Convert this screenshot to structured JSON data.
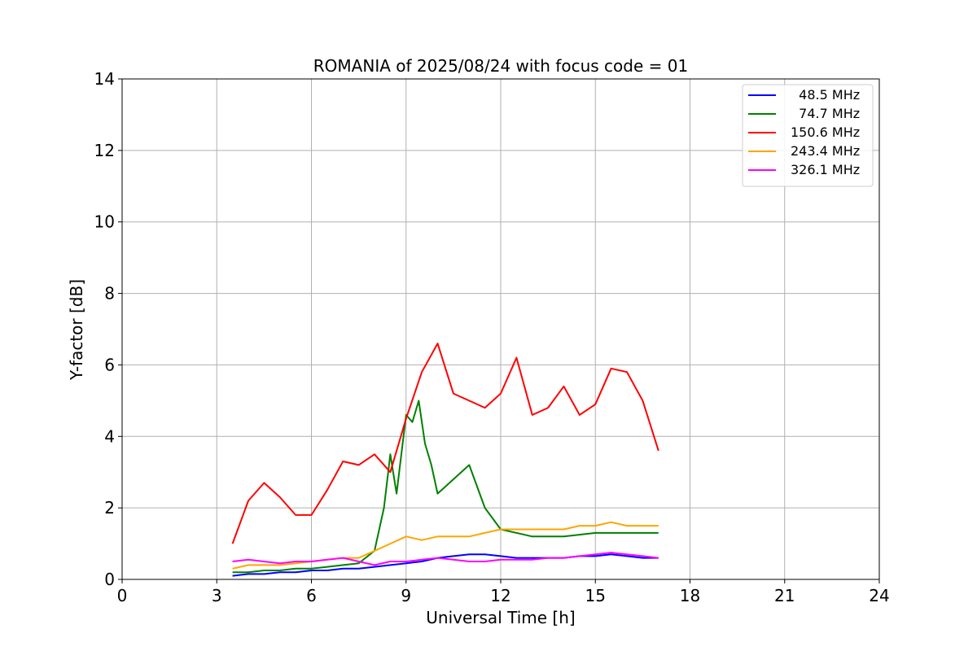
{
  "chart_data": {
    "type": "line",
    "title": "ROMANIA of 2025/08/24 with focus code = 01",
    "xlabel": "Universal Time [h]",
    "ylabel": "Y-factor [dB]",
    "xlim": [
      0,
      24
    ],
    "ylim": [
      0,
      14
    ],
    "xticks": [
      0,
      3,
      6,
      9,
      12,
      15,
      18,
      21,
      24
    ],
    "yticks": [
      0,
      2,
      4,
      6,
      8,
      10,
      12,
      14
    ],
    "grid": true,
    "legend_position": "top-right",
    "series": [
      {
        "name": "  48.5 MHz",
        "color": "#0000ff",
        "x": [
          3.5,
          4.0,
          4.5,
          5.0,
          5.5,
          6.0,
          6.5,
          7.0,
          7.5,
          8.0,
          8.5,
          9.0,
          9.5,
          10.0,
          10.5,
          11.0,
          11.5,
          12.0,
          12.5,
          13.0,
          13.5,
          14.0,
          14.5,
          15.0,
          15.5,
          16.0,
          16.5,
          17.0
        ],
        "y": [
          0.1,
          0.15,
          0.15,
          0.2,
          0.2,
          0.25,
          0.25,
          0.3,
          0.3,
          0.35,
          0.4,
          0.45,
          0.5,
          0.6,
          0.65,
          0.7,
          0.7,
          0.65,
          0.6,
          0.6,
          0.6,
          0.6,
          0.65,
          0.65,
          0.7,
          0.65,
          0.6,
          0.6
        ]
      },
      {
        "name": "  74.7 MHz",
        "color": "#008000",
        "x": [
          3.5,
          4.0,
          4.5,
          5.0,
          5.5,
          6.0,
          6.5,
          7.0,
          7.5,
          8.0,
          8.3,
          8.5,
          8.7,
          9.0,
          9.2,
          9.4,
          9.6,
          9.8,
          10.0,
          10.5,
          11.0,
          11.5,
          12.0,
          13.0,
          14.0,
          15.0,
          16.0,
          17.0
        ],
        "y": [
          0.2,
          0.2,
          0.25,
          0.25,
          0.3,
          0.3,
          0.35,
          0.4,
          0.45,
          0.8,
          2.0,
          3.5,
          2.4,
          4.6,
          4.4,
          5.0,
          3.8,
          3.2,
          2.4,
          2.8,
          3.2,
          2.0,
          1.4,
          1.2,
          1.2,
          1.3,
          1.3,
          1.3
        ]
      },
      {
        "name": "150.6 MHz",
        "color": "#ff0000",
        "x": [
          3.5,
          4.0,
          4.5,
          5.0,
          5.5,
          6.0,
          6.5,
          7.0,
          7.5,
          8.0,
          8.5,
          9.0,
          9.5,
          10.0,
          10.5,
          11.0,
          11.5,
          12.0,
          12.5,
          13.0,
          13.5,
          14.0,
          14.5,
          15.0,
          15.5,
          16.0,
          16.5,
          17.0
        ],
        "y": [
          1.0,
          2.2,
          2.7,
          2.3,
          1.8,
          1.8,
          2.5,
          3.3,
          3.2,
          3.5,
          3.0,
          4.5,
          5.8,
          6.6,
          5.2,
          5.0,
          4.8,
          5.2,
          6.2,
          4.6,
          4.8,
          5.4,
          4.6,
          4.9,
          5.9,
          5.8,
          5.0,
          3.6
        ]
      },
      {
        "name": "243.4 MHz",
        "color": "#ffa500",
        "x": [
          3.5,
          4.0,
          4.5,
          5.0,
          5.5,
          6.0,
          6.5,
          7.0,
          7.5,
          8.0,
          8.5,
          9.0,
          9.5,
          10.0,
          10.5,
          11.0,
          11.5,
          12.0,
          12.5,
          13.0,
          13.5,
          14.0,
          14.5,
          15.0,
          15.5,
          16.0,
          16.5,
          17.0
        ],
        "y": [
          0.3,
          0.4,
          0.4,
          0.4,
          0.45,
          0.5,
          0.55,
          0.6,
          0.6,
          0.8,
          1.0,
          1.2,
          1.1,
          1.2,
          1.2,
          1.2,
          1.3,
          1.4,
          1.4,
          1.4,
          1.4,
          1.4,
          1.5,
          1.5,
          1.6,
          1.5,
          1.5,
          1.5
        ]
      },
      {
        "name": "326.1 MHz",
        "color": "#ff00ff",
        "x": [
          3.5,
          4.0,
          4.5,
          5.0,
          5.5,
          6.0,
          6.5,
          7.0,
          7.5,
          8.0,
          8.5,
          9.0,
          9.5,
          10.0,
          10.5,
          11.0,
          11.5,
          12.0,
          12.5,
          13.0,
          13.5,
          14.0,
          14.5,
          15.0,
          15.5,
          16.0,
          16.5,
          17.0
        ],
        "y": [
          0.5,
          0.55,
          0.5,
          0.45,
          0.5,
          0.5,
          0.55,
          0.6,
          0.5,
          0.4,
          0.5,
          0.5,
          0.55,
          0.6,
          0.55,
          0.5,
          0.5,
          0.55,
          0.55,
          0.55,
          0.6,
          0.6,
          0.65,
          0.7,
          0.75,
          0.7,
          0.65,
          0.6
        ]
      }
    ]
  }
}
